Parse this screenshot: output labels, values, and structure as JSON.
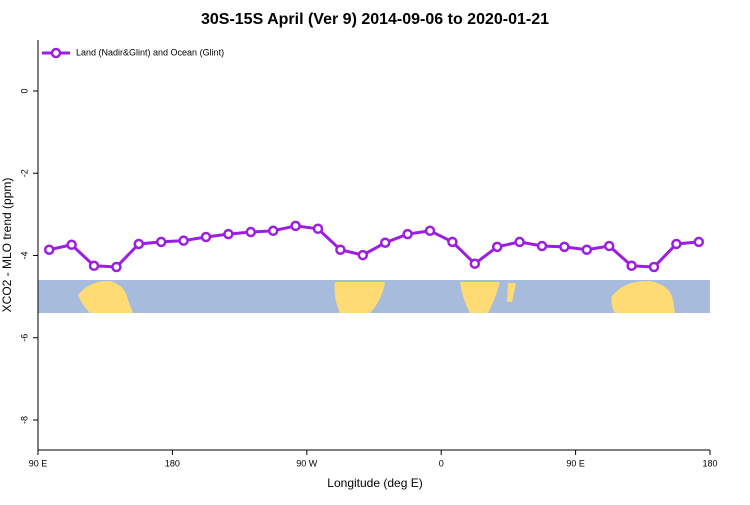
{
  "chart_data": {
    "type": "line",
    "title": "30S-15S April (Ver 9)   2014-09-06 to 2020-01-21",
    "x_label": "Longitude (deg E)",
    "y_label": "XCO2 - MLO trend (ppm)",
    "x": [
      97.5,
      112.5,
      127.5,
      142.5,
      157.5,
      172.5,
      187.5,
      202.5,
      217.5,
      232.5,
      247.5,
      262.5,
      277.5,
      292.5,
      307.5,
      322.5,
      337.5,
      352.5,
      367.5,
      382.5,
      397.5,
      412.5,
      427.5,
      442.5,
      457.5,
      472.5,
      487.5,
      502.5,
      517.5,
      532.5
    ],
    "series": [
      {
        "name": "Land (Nadir&Glint) and Ocean (Glint)",
        "color": "#9b1fe0",
        "values": [
          -3.86,
          -3.74,
          -4.25,
          -4.28,
          -3.72,
          -3.67,
          -3.64,
          -3.55,
          -3.48,
          -3.43,
          -3.4,
          -3.28,
          -3.35,
          -3.86,
          -3.99,
          -3.69,
          -3.48,
          -3.4,
          -3.67,
          -4.2,
          -3.79,
          -3.67,
          -3.77,
          -3.79,
          -3.86,
          -3.77,
          -4.25,
          -4.28,
          -3.72,
          -3.67
        ]
      }
    ],
    "xlim": [
      90,
      540
    ],
    "xticks": [
      {
        "value": 90,
        "label": "90 E"
      },
      180,
      {
        "value": 270,
        "label": "90 W"
      },
      {
        "value": 360,
        "label": "0"
      },
      {
        "value": 450,
        "label": "90 E"
      },
      {
        "value": 540,
        "label": "180"
      }
    ],
    "ylim": [
      -8.73,
      1.24
    ],
    "yticks": [
      0,
      -2,
      -4,
      -6,
      -8
    ],
    "legend": "top-left"
  }
}
